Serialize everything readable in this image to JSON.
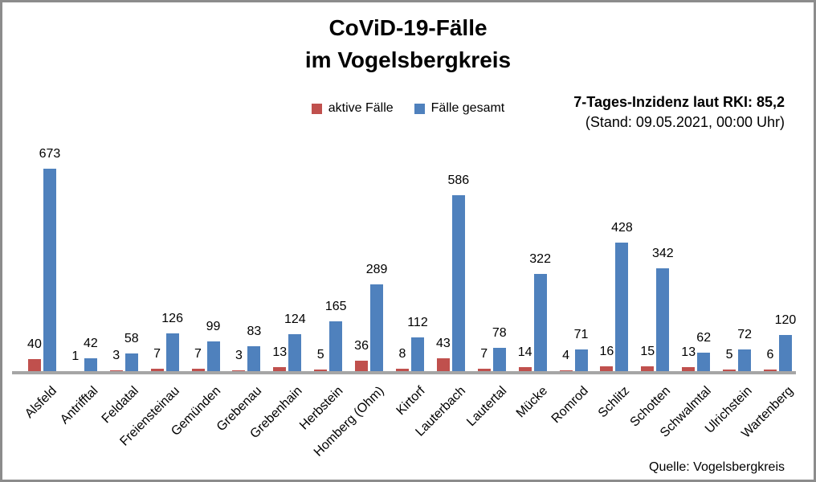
{
  "title": {
    "line1": "CoViD-19-Fälle",
    "line2": "im Vogelsbergkreis"
  },
  "legend": [
    {
      "label": "aktive Fälle",
      "color": "#C0504D"
    },
    {
      "label": "Fälle gesamt",
      "color": "#4F81BD"
    }
  ],
  "incidence": {
    "line1": "7-Tages-Inzidenz laut RKI: 85,2",
    "line2": "(Stand: 09.05.2021, 00:00 Uhr)"
  },
  "source": "Quelle: Vogelsbergkreis",
  "colors": {
    "active": "#C0504D",
    "total": "#4F81BD",
    "axis": "#A6A6A6",
    "frame_border": "#8C8C8C",
    "background": "#FFFFFF",
    "text": "#000000"
  },
  "chart_data": {
    "type": "bar",
    "title": "CoViD-19-Fälle im Vogelsbergkreis",
    "categories": [
      "Alsfeld",
      "Antrifftal",
      "Feldatal",
      "Freiensteinau",
      "Gemünden",
      "Grebenau",
      "Grebenhain",
      "Herbstein",
      "Homberg (Ohm)",
      "Kirtorf",
      "Lauterbach",
      "Lautertal",
      "Mücke",
      "Romrod",
      "Schlitz",
      "Schotten",
      "Schwalmtal",
      "Ulrichstein",
      "Wartenberg"
    ],
    "series": [
      {
        "name": "aktive Fälle",
        "color": "#C0504D",
        "values": [
          40,
          1,
          3,
          7,
          7,
          3,
          13,
          5,
          36,
          8,
          43,
          7,
          14,
          4,
          16,
          15,
          13,
          5,
          6
        ]
      },
      {
        "name": "Fälle gesamt",
        "color": "#4F81BD",
        "values": [
          673,
          42,
          58,
          126,
          99,
          83,
          124,
          165,
          289,
          112,
          586,
          78,
          322,
          71,
          428,
          342,
          62,
          72,
          120
        ]
      }
    ],
    "xlabel": "",
    "ylabel": "",
    "ylim": [
      0,
      700
    ],
    "grid": false,
    "y_axis_visible": false,
    "legend_position": "top-center",
    "data_labels": "outside-end",
    "category_label_rotation": -45
  }
}
